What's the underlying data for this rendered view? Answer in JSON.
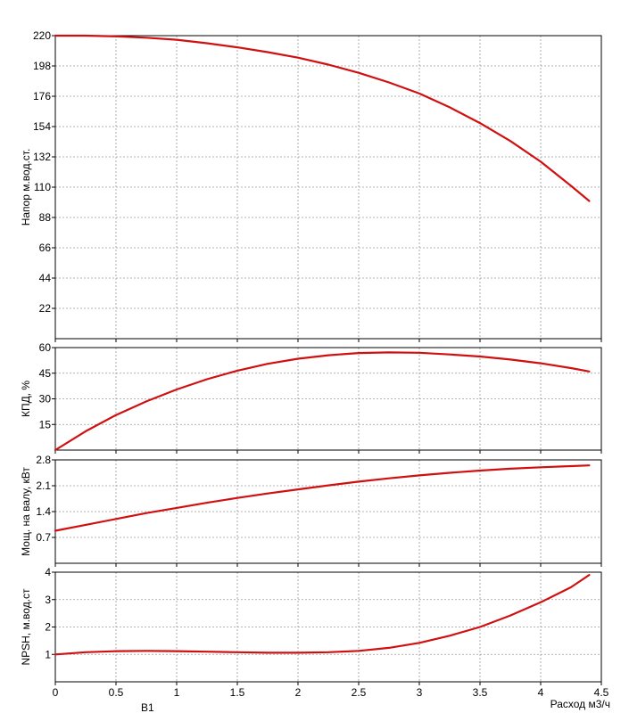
{
  "colors": {
    "curve": "#d01010",
    "grid": "#9a9a9a",
    "axis": "#000000"
  },
  "footer_text": "B1",
  "chart_data": [
    {
      "type": "line",
      "ylabel": "Напор м.вод.ст.",
      "xlabel": "",
      "ylim": [
        0,
        220
      ],
      "yticks": [
        22,
        44,
        66,
        88,
        110,
        132,
        154,
        176,
        198,
        220
      ],
      "xlim": [
        0,
        4.5
      ],
      "grid": true,
      "series": [
        {
          "x": [
            0,
            0.25,
            0.5,
            0.75,
            1,
            1.25,
            1.5,
            1.75,
            2,
            2.25,
            2.5,
            2.75,
            3,
            3.25,
            3.5,
            3.75,
            4,
            4.25,
            4.4
          ],
          "values": [
            220,
            220,
            219.5,
            218.5,
            217,
            214.5,
            211.5,
            208,
            204,
            199,
            193,
            186,
            178,
            168,
            156.5,
            143.5,
            128.5,
            111,
            100
          ]
        }
      ]
    },
    {
      "type": "line",
      "ylabel": "КПД, %",
      "xlabel": "",
      "ylim": [
        0,
        60
      ],
      "yticks": [
        15,
        30,
        45,
        60
      ],
      "xlim": [
        0,
        4.5
      ],
      "grid": true,
      "series": [
        {
          "x": [
            0,
            0.25,
            0.5,
            0.75,
            1,
            1.25,
            1.5,
            1.75,
            2,
            2.25,
            2.5,
            2.75,
            3,
            3.25,
            3.5,
            3.75,
            4,
            4.25,
            4.4
          ],
          "values": [
            0,
            11,
            20.5,
            28.5,
            35.5,
            41.5,
            46.5,
            50.5,
            53.5,
            55.5,
            56.8,
            57.2,
            57,
            56,
            54.8,
            53,
            50.8,
            48,
            46
          ]
        }
      ]
    },
    {
      "type": "line",
      "ylabel": "Мощ. на валу, кВт",
      "xlabel": "",
      "ylim": [
        0,
        2.8
      ],
      "yticks": [
        0.7,
        1.4,
        2.1,
        2.8
      ],
      "xlim": [
        0,
        4.5
      ],
      "grid": true,
      "series": [
        {
          "x": [
            0,
            0.25,
            0.5,
            0.75,
            1,
            1.25,
            1.5,
            1.75,
            2,
            2.25,
            2.5,
            2.75,
            3,
            3.25,
            3.5,
            3.75,
            4,
            4.25,
            4.4
          ],
          "values": [
            0.88,
            1.04,
            1.2,
            1.36,
            1.5,
            1.64,
            1.77,
            1.89,
            2.0,
            2.11,
            2.21,
            2.3,
            2.38,
            2.45,
            2.51,
            2.56,
            2.6,
            2.63,
            2.65
          ]
        }
      ]
    },
    {
      "type": "line",
      "ylabel": "NPSH, м.вод.ст",
      "xlabel": "Расход м3/ч",
      "ylim": [
        0,
        4
      ],
      "yticks": [
        1,
        2,
        3,
        4
      ],
      "xlim": [
        0,
        4.5
      ],
      "xticks": [
        "0",
        "0.5",
        "1",
        "1.5",
        "2",
        "2.5",
        "3",
        "3.5",
        "4",
        "4.5"
      ],
      "grid": true,
      "series": [
        {
          "x": [
            0,
            0.25,
            0.5,
            0.75,
            1,
            1.25,
            1.5,
            1.75,
            2,
            2.25,
            2.5,
            2.75,
            3,
            3.25,
            3.5,
            3.75,
            4,
            4.25,
            4.4
          ],
          "values": [
            1.0,
            1.08,
            1.12,
            1.13,
            1.12,
            1.1,
            1.08,
            1.06,
            1.06,
            1.08,
            1.13,
            1.24,
            1.42,
            1.68,
            2.0,
            2.42,
            2.9,
            3.45,
            3.9
          ]
        }
      ]
    }
  ]
}
